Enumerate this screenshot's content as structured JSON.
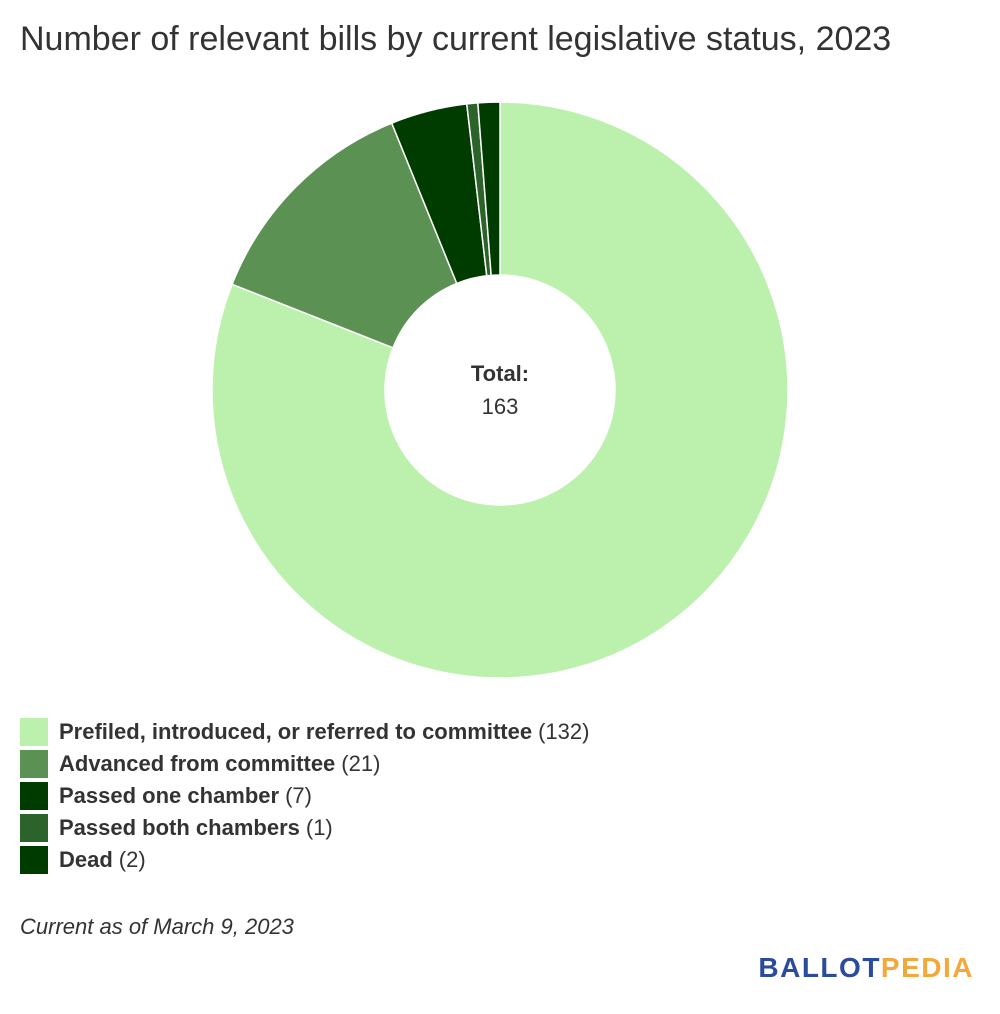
{
  "chart_data": {
    "type": "pie",
    "title": "Number of relevant bills by current legislative status, 2023",
    "center_label": "Total:",
    "center_value": "163",
    "donut": true,
    "legend_position": "bottom-left",
    "categories": [
      "Prefiled, introduced, or referred to committee",
      "Advanced from committee",
      "Passed one chamber",
      "Passed both chambers",
      "Dead"
    ],
    "values": [
      132,
      21,
      7,
      1,
      2
    ],
    "count_labels": [
      "(132)",
      "(21)",
      "(7)",
      "(1)",
      "(2)"
    ],
    "colors": [
      "#bbf0ad",
      "#5b9153",
      "#003c00",
      "#2c632a",
      "#003c00"
    ]
  },
  "footer": {
    "note": "Current as of March 9, 2023",
    "logo_part_1": "BALLOT",
    "logo_part_2": "PEDIA"
  }
}
